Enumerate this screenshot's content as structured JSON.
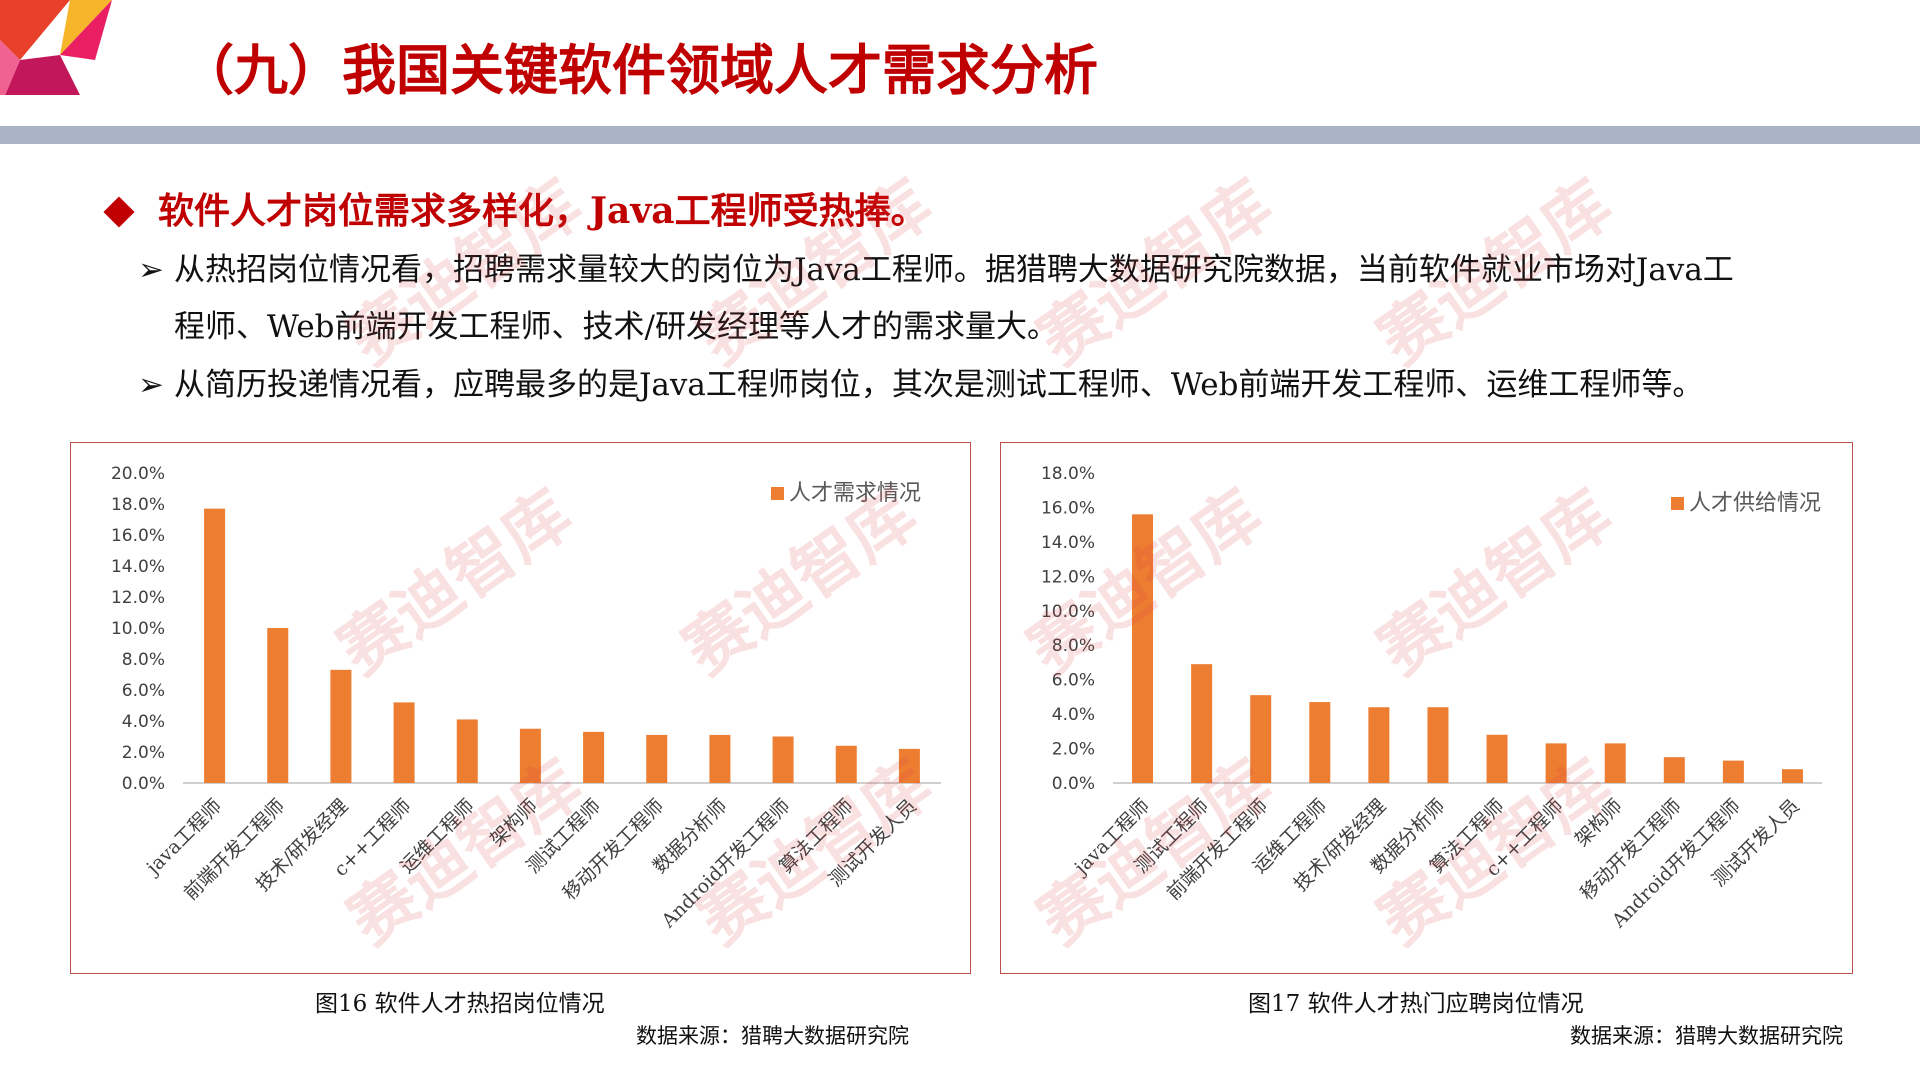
{
  "page": {
    "title": "（九）我国关键软件领域人才需求分析",
    "headline": "软件人才岗位需求多样化，Java工程师受热捧。",
    "bullets": [
      {
        "line1": "从热招岗位情况看，招聘需求量较大的岗位为Java工程师。据猎聘大数据研究院数据，当前软件就业市场对Java工",
        "line2": "程师、Web前端开发工程师、技术/研发经理等人才的需求量大。"
      },
      {
        "line1": "从简历投递情况看，应聘最多的是Java工程师岗位，其次是测试工程师、Web前端开发工程师、运维工程师等。"
      }
    ],
    "watermark": "赛迪智库",
    "colors": {
      "accent": "#c00000",
      "bar": "#ed7d31",
      "frame": "#c0504d",
      "rule": "#a9b4c7"
    }
  },
  "chart_data": [
    {
      "type": "bar",
      "caption": "图16 软件人才热招岗位情况",
      "source": "数据来源：猎聘大数据研究院",
      "categories": [
        "java工程师",
        "前端开发工程师",
        "技术/研发经理",
        "c++工程师",
        "运维工程师",
        "架构师",
        "测试工程师",
        "移动开发工程师",
        "数据分析师",
        "Android开发工程师",
        "算法工程师",
        "测试开发人员"
      ],
      "series": [
        {
          "name": "人才需求情况",
          "values": [
            17.7,
            10.0,
            7.3,
            5.2,
            4.1,
            3.5,
            3.3,
            3.1,
            3.1,
            3.0,
            2.4,
            2.2
          ]
        }
      ],
      "ylim": [
        0,
        20
      ],
      "yticks": [
        0,
        2,
        4,
        6,
        8,
        10,
        12,
        14,
        16,
        18,
        20
      ],
      "ytick_labels": [
        "0.0%",
        "2.0%",
        "4.0%",
        "6.0%",
        "8.0%",
        "10.0%",
        "12.0%",
        "14.0%",
        "16.0%",
        "18.0%",
        "20.0%"
      ],
      "legend_position": "top-right",
      "grid": false
    },
    {
      "type": "bar",
      "caption": "图17 软件人才热门应聘岗位情况",
      "source": "数据来源：猎聘大数据研究院",
      "categories": [
        "java工程师",
        "测试工程师",
        "前端开发工程师",
        "运维工程师",
        "技术/研发经理",
        "数据分析师",
        "算法工程师",
        "c++工程师",
        "架构师",
        "移动开发工程师",
        "Android开发工程师",
        "测试开发人员"
      ],
      "series": [
        {
          "name": "人才供给情况",
          "values": [
            15.6,
            6.9,
            5.1,
            4.7,
            4.4,
            4.4,
            2.8,
            2.3,
            2.3,
            1.5,
            1.3,
            0.8
          ]
        }
      ],
      "ylim": [
        0,
        18
      ],
      "yticks": [
        0,
        2,
        4,
        6,
        8,
        10,
        12,
        14,
        16,
        18
      ],
      "ytick_labels": [
        "0.0%",
        "2.0%",
        "4.0%",
        "6.0%",
        "8.0%",
        "10.0%",
        "12.0%",
        "14.0%",
        "16.0%",
        "18.0%"
      ],
      "legend_position": "top-right",
      "grid": false
    }
  ]
}
